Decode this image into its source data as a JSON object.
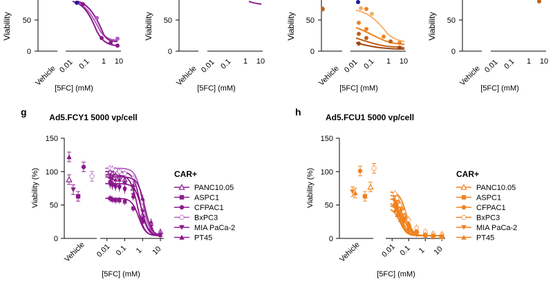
{
  "colors": {
    "purple": "#8b1a8b",
    "purple_light": "#b05fc0",
    "orange": "#f0821e",
    "orange_dark": "#c0601a",
    "orange_light": "#f5b070",
    "blue": "#1a1aa0"
  },
  "top_row": {
    "ylabel": "Viability",
    "xlabel": "[5FC] (mM)",
    "vehicle_label": "Vehicle",
    "y_ticks": [
      "50",
      "0"
    ],
    "x_ticks": [
      "0.01",
      "0.1",
      "1",
      "10"
    ]
  },
  "chart_data": [
    {
      "panel": "g",
      "type": "scatter",
      "title": "Ad5.FCY1 5000 vp/cell",
      "xlabel": "[5FC] (mM)",
      "ylabel": "Viability (%)",
      "ylim": [
        0,
        150
      ],
      "y_ticks": [
        "150",
        "100",
        "50",
        "0"
      ],
      "x_ticks": [
        "0.01",
        "0.1",
        "1",
        "10"
      ],
      "vehicle_label": "Vehicle",
      "legend_title": "CAR+",
      "legend_placement": "right",
      "series": [
        {
          "name": "PANC10.05",
          "marker": "triangle-open",
          "vehicle": 88,
          "ic50": 0.75,
          "top": 100,
          "points": [
            [
              0.015,
              100
            ],
            [
              0.02,
              97
            ],
            [
              0.03,
              95
            ],
            [
              0.05,
              92
            ],
            [
              0.1,
              88
            ],
            [
              0.3,
              75
            ],
            [
              1,
              35
            ],
            [
              3,
              15
            ],
            [
              10,
              10
            ]
          ]
        },
        {
          "name": "ASPC1",
          "marker": "square",
          "vehicle": 63,
          "ic50": 0.6,
          "top": 60,
          "points": [
            [
              0.015,
              60
            ],
            [
              0.02,
              58
            ],
            [
              0.03,
              57
            ],
            [
              0.05,
              57
            ],
            [
              0.1,
              55
            ],
            [
              0.3,
              45
            ],
            [
              1,
              25
            ],
            [
              3,
              12
            ],
            [
              10,
              8
            ]
          ]
        },
        {
          "name": "CFPAC1",
          "marker": "circle",
          "vehicle": 107,
          "ic50": 0.5,
          "top": 95,
          "points": [
            [
              0.015,
              85
            ],
            [
              0.02,
              82
            ],
            [
              0.03,
              80
            ],
            [
              0.05,
              78
            ],
            [
              0.1,
              75
            ],
            [
              0.3,
              62
            ],
            [
              1,
              30
            ],
            [
              3,
              15
            ],
            [
              10,
              8
            ]
          ]
        },
        {
          "name": "BxPC3",
          "marker": "circle-dotted",
          "vehicle": 93,
          "ic50": 1.0,
          "top": 105,
          "points": [
            [
              0.015,
              105
            ],
            [
              0.02,
              104
            ],
            [
              0.03,
              102
            ],
            [
              0.05,
              100
            ],
            [
              0.1,
              97
            ],
            [
              0.3,
              90
            ],
            [
              1,
              55
            ],
            [
              3,
              20
            ],
            [
              10,
              8
            ]
          ]
        },
        {
          "name": "MIA PaCa-2",
          "marker": "triangle-down",
          "vehicle": 73,
          "ic50": 0.9,
          "top": 82,
          "points": [
            [
              0.015,
              80
            ],
            [
              0.02,
              78
            ],
            [
              0.03,
              76
            ],
            [
              0.05,
              75
            ],
            [
              0.1,
              72
            ],
            [
              0.3,
              65
            ],
            [
              1,
              40
            ],
            [
              3,
              18
            ],
            [
              10,
              6
            ]
          ]
        },
        {
          "name": "PT45",
          "marker": "triangle",
          "vehicle": 122,
          "ic50": 1.3,
          "top": 92,
          "points": [
            [
              0.015,
              92
            ],
            [
              0.02,
              90
            ],
            [
              0.03,
              88
            ],
            [
              0.05,
              88
            ],
            [
              0.1,
              85
            ],
            [
              0.3,
              80
            ],
            [
              1,
              60
            ],
            [
              3,
              25
            ],
            [
              10,
              5
            ]
          ]
        }
      ]
    },
    {
      "panel": "h",
      "type": "scatter",
      "title": "Ad5.FCU1 5000 vp/cell",
      "xlabel": "[5FC] (mM)",
      "ylabel": "Viability (%)",
      "ylim": [
        0,
        150
      ],
      "y_ticks": [
        "150",
        "100",
        "50",
        "0"
      ],
      "x_ticks": [
        "0.01",
        "0.1",
        "1",
        "10"
      ],
      "vehicle_label": "Vehicle",
      "legend_title": "CAR+",
      "legend_placement": "right",
      "series": [
        {
          "name": "PANC10.05",
          "marker": "triangle-open",
          "vehicle": 77,
          "ic50": 0.06,
          "top": 65,
          "points": [
            [
              0.015,
              62
            ],
            [
              0.02,
              55
            ],
            [
              0.03,
              45
            ],
            [
              0.05,
              35
            ],
            [
              0.1,
              22
            ],
            [
              0.3,
              12
            ],
            [
              1,
              8
            ],
            [
              3,
              6
            ],
            [
              10,
              5
            ]
          ]
        },
        {
          "name": "ASPC1",
          "marker": "square",
          "vehicle": 63,
          "ic50": 0.05,
          "top": 60,
          "points": [
            [
              0.015,
              58
            ],
            [
              0.02,
              50
            ],
            [
              0.03,
              40
            ],
            [
              0.05,
              30
            ],
            [
              0.1,
              20
            ],
            [
              0.3,
              10
            ],
            [
              1,
              6
            ],
            [
              3,
              5
            ],
            [
              10,
              4
            ]
          ]
        },
        {
          "name": "CFPAC1",
          "marker": "circle",
          "vehicle": 101,
          "ic50": 0.03,
          "top": 55,
          "points": [
            [
              0.015,
              52
            ],
            [
              0.02,
              45
            ],
            [
              0.03,
              35
            ],
            [
              0.05,
              25
            ],
            [
              0.1,
              15
            ],
            [
              0.3,
              8
            ],
            [
              1,
              5
            ],
            [
              3,
              4
            ],
            [
              10,
              3
            ]
          ]
        },
        {
          "name": "BxPC3",
          "marker": "circle-dotted",
          "vehicle": 105,
          "ic50": 0.07,
          "top": 70,
          "points": [
            [
              0.015,
              67
            ],
            [
              0.02,
              60
            ],
            [
              0.03,
              50
            ],
            [
              0.05,
              40
            ],
            [
              0.1,
              28
            ],
            [
              0.3,
              16
            ],
            [
              1,
              10
            ],
            [
              3,
              7
            ],
            [
              10,
              6
            ]
          ]
        },
        {
          "name": "MIA PaCa-2",
          "marker": "triangle-down",
          "vehicle": 70,
          "ic50": 0.04,
          "top": 50,
          "points": [
            [
              0.015,
              48
            ],
            [
              0.02,
              40
            ],
            [
              0.03,
              32
            ],
            [
              0.05,
              25
            ],
            [
              0.1,
              15
            ],
            [
              0.3,
              8
            ],
            [
              1,
              5
            ],
            [
              3,
              4
            ],
            [
              10,
              3
            ]
          ]
        },
        {
          "name": "PT45",
          "marker": "triangle",
          "vehicle": 68,
          "ic50": 0.03,
          "top": 45,
          "points": [
            [
              0.015,
              42
            ],
            [
              0.02,
              35
            ],
            [
              0.03,
              28
            ],
            [
              0.05,
              20
            ],
            [
              0.1,
              12
            ],
            [
              0.3,
              7
            ],
            [
              1,
              4
            ],
            [
              3,
              3
            ],
            [
              10,
              2
            ]
          ]
        }
      ]
    }
  ]
}
